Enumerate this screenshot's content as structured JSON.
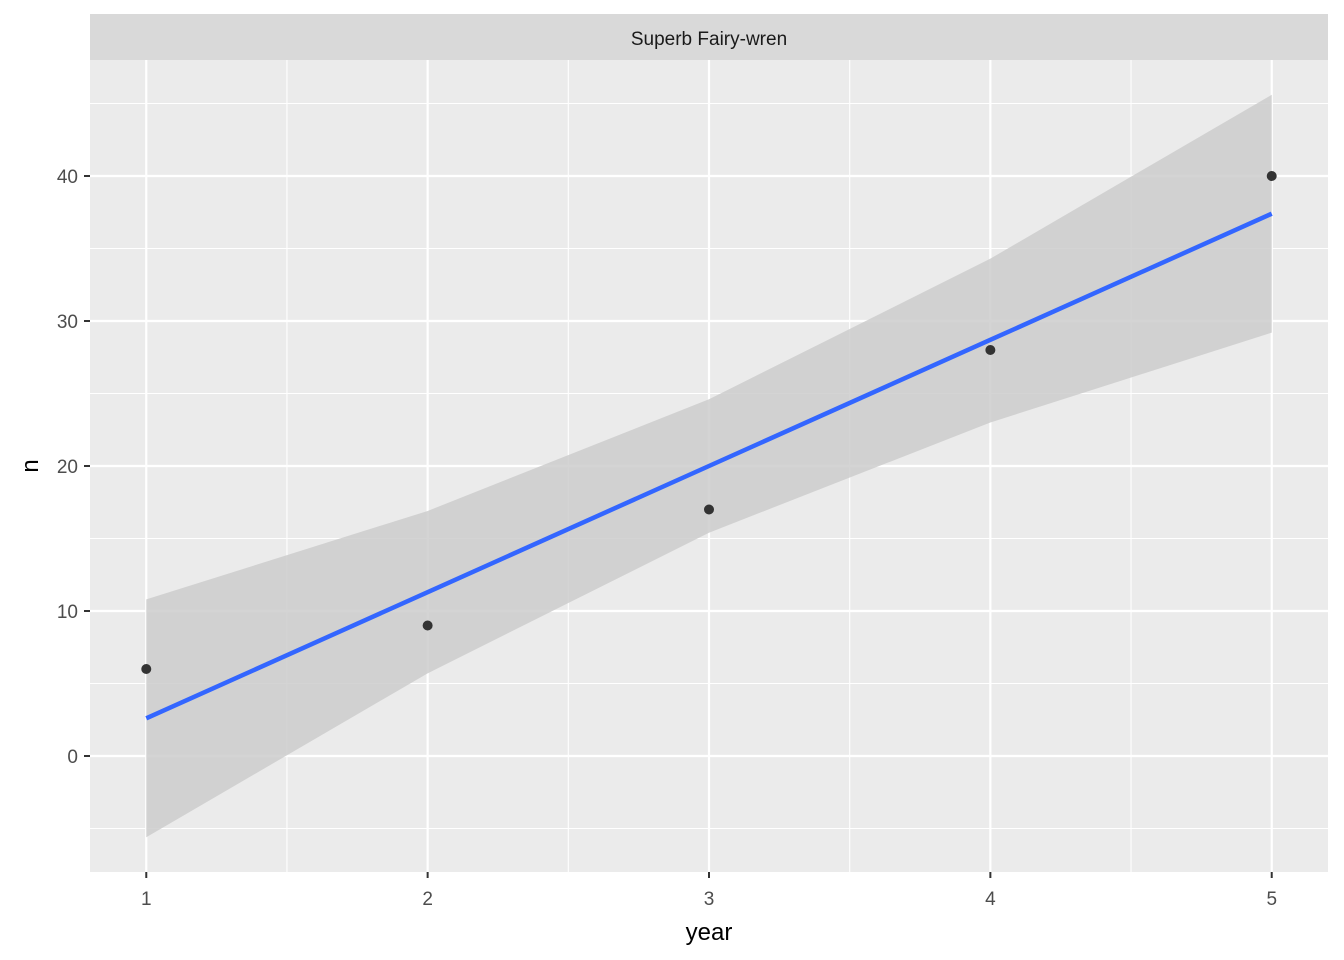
{
  "chart_data": {
    "type": "scatter",
    "facet_label": "Superb Fairy-wren",
    "xlabel": "year",
    "ylabel": "n",
    "x_ticks": [
      1,
      2,
      3,
      4,
      5
    ],
    "y_ticks": [
      0,
      10,
      20,
      30,
      40
    ],
    "xlim": [
      0.8,
      5.2
    ],
    "ylim": [
      -8,
      48
    ],
    "grid": true,
    "points": [
      {
        "x": 1,
        "y": 6
      },
      {
        "x": 2,
        "y": 9
      },
      {
        "x": 3,
        "y": 17
      },
      {
        "x": 4,
        "y": 28
      },
      {
        "x": 5,
        "y": 40
      }
    ],
    "smooth": {
      "method": "lm",
      "color": "#3366ff",
      "band_color": "#cccccc",
      "x": [
        1,
        2,
        3,
        4,
        5
      ],
      "fit": [
        2.6,
        11.3,
        20.0,
        28.7,
        37.4
      ],
      "lower": [
        -5.6,
        5.7,
        15.4,
        23.0,
        29.2
      ],
      "upper": [
        10.8,
        16.9,
        24.6,
        34.3,
        45.6
      ]
    },
    "colors": {
      "panel_bg": "#ebebeb",
      "strip_bg": "#d9d9d9",
      "grid": "#ffffff",
      "point": "#333333"
    }
  }
}
